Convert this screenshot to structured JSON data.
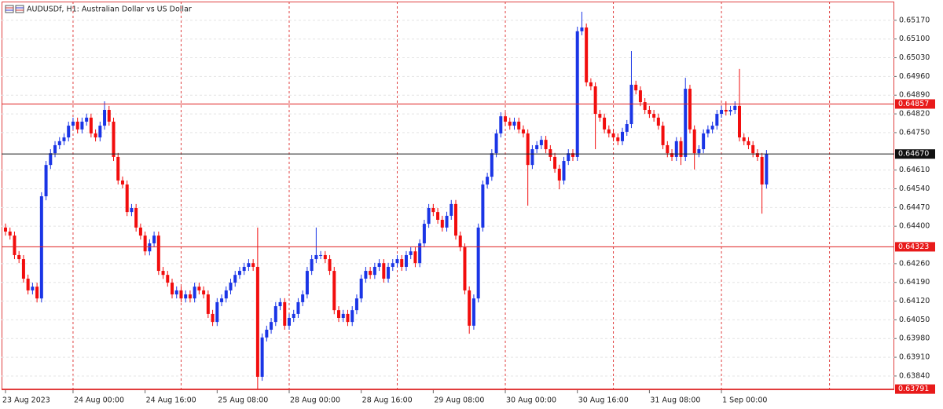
{
  "chart_data": {
    "type": "candlestick",
    "title": "AUDUSDf, H1:  Australian Dollar vs US Dollar",
    "up_color": "#1a35e6",
    "down_color": "#f20d0d",
    "ylim": [
      0.63787,
      0.6524
    ],
    "yticks": [
      {
        "value": 0.6517,
        "label": "0.65170"
      },
      {
        "value": 0.651,
        "label": "0.65100"
      },
      {
        "value": 0.6503,
        "label": "0.65030"
      },
      {
        "value": 0.6496,
        "label": "0.64960"
      },
      {
        "value": 0.6489,
        "label": "0.64890"
      },
      {
        "value": 0.6482,
        "label": "0.64820"
      },
      {
        "value": 0.6475,
        "label": "0.64750"
      },
      {
        "value": 0.6461,
        "label": "0.64610"
      },
      {
        "value": 0.6454,
        "label": "0.64540"
      },
      {
        "value": 0.6447,
        "label": "0.64470"
      },
      {
        "value": 0.644,
        "label": "0.64400"
      },
      {
        "value": 0.6426,
        "label": "0.64260"
      },
      {
        "value": 0.6419,
        "label": "0.64190"
      },
      {
        "value": 0.6412,
        "label": "0.64120"
      },
      {
        "value": 0.6405,
        "label": "0.64050"
      },
      {
        "value": 0.6398,
        "label": "0.63980"
      },
      {
        "value": 0.6391,
        "label": "0.63910"
      },
      {
        "value": 0.6384,
        "label": "0.63840"
      }
    ],
    "grid": true,
    "levels": [
      0.64857,
      0.64323,
      0.63791
    ],
    "current_price": {
      "value": 0.6467,
      "label": "0.64670"
    },
    "categories": [
      "23 Aug 2023",
      null,
      null,
      null,
      null,
      null,
      null,
      null,
      null,
      null,
      null,
      null,
      null,
      null,
      null,
      "24 Aug 00:00",
      null,
      null,
      null,
      null,
      null,
      null,
      null,
      null,
      null,
      null,
      null,
      null,
      null,
      null,
      null,
      "24 Aug 16:00",
      null,
      null,
      null,
      null,
      null,
      null,
      null,
      null,
      null,
      null,
      null,
      null,
      null,
      null,
      null,
      "25 Aug 08:00",
      null,
      null,
      null,
      null,
      null,
      null,
      null,
      null,
      null,
      null,
      null,
      null,
      null,
      null,
      null,
      "28 Aug 00:00",
      null,
      null,
      null,
      null,
      null,
      null,
      null,
      null,
      null,
      null,
      null,
      null,
      null,
      null,
      null,
      "28 Aug 16:00",
      null,
      null,
      null,
      null,
      null,
      null,
      null,
      null,
      null,
      null,
      null,
      null,
      null,
      null,
      null,
      "29 Aug 08:00",
      null,
      null,
      null,
      null,
      null,
      null,
      null,
      null,
      null,
      null,
      null,
      null,
      null,
      null,
      null,
      "30 Aug 00:00",
      null,
      null,
      null,
      null,
      null,
      null,
      null,
      null,
      null,
      null,
      null,
      null,
      null,
      null,
      null,
      "30 Aug 16:00",
      null,
      null,
      null,
      null,
      null,
      null,
      null,
      null,
      null,
      null,
      null,
      null,
      null,
      null,
      null,
      "31 Aug 08:00",
      null,
      null,
      null,
      null,
      null,
      null,
      null,
      null,
      null,
      null,
      null,
      null,
      null,
      null,
      null,
      "1 Sep 00:00",
      null,
      null,
      null,
      null,
      null,
      null,
      null,
      null,
      null,
      null
    ],
    "candles": [
      [
        0.64395,
        0.6441,
        0.64365,
        0.6438
      ],
      [
        0.6438,
        0.64395,
        0.6435,
        0.64365
      ],
      [
        0.64365,
        0.6438,
        0.64277,
        0.64292
      ],
      [
        0.64292,
        0.64307,
        0.64262,
        0.64277
      ],
      [
        0.64277,
        0.64292,
        0.64189,
        0.64204
      ],
      [
        0.64204,
        0.64219,
        0.64145,
        0.6416
      ],
      [
        0.6416,
        0.64189,
        0.64145,
        0.64174
      ],
      [
        0.64174,
        0.64189,
        0.64115,
        0.6413
      ],
      [
        0.6413,
        0.64527,
        0.64115,
        0.64512
      ],
      [
        0.64512,
        0.64644,
        0.64497,
        0.64629
      ],
      [
        0.64629,
        0.64688,
        0.64614,
        0.64673
      ],
      [
        0.64673,
        0.64718,
        0.64658,
        0.64703
      ],
      [
        0.64703,
        0.64733,
        0.64688,
        0.64718
      ],
      [
        0.64718,
        0.64747,
        0.64703,
        0.64732
      ],
      [
        0.64732,
        0.64791,
        0.64717,
        0.64776
      ],
      [
        0.64776,
        0.64806,
        0.64761,
        0.64791
      ],
      [
        0.64791,
        0.64806,
        0.64747,
        0.64762
      ],
      [
        0.64762,
        0.64806,
        0.64747,
        0.64791
      ],
      [
        0.64791,
        0.64821,
        0.64776,
        0.64806
      ],
      [
        0.64806,
        0.64821,
        0.64732,
        0.64747
      ],
      [
        0.64747,
        0.64762,
        0.64717,
        0.64732
      ],
      [
        0.64732,
        0.64791,
        0.64717,
        0.64776
      ],
      [
        0.64776,
        0.64867,
        0.64761,
        0.64835
      ],
      [
        0.64835,
        0.6485,
        0.64776,
        0.64791
      ],
      [
        0.64791,
        0.64806,
        0.64644,
        0.64659
      ],
      [
        0.64659,
        0.64674,
        0.64556,
        0.64571
      ],
      [
        0.64571,
        0.64586,
        0.64541,
        0.64556
      ],
      [
        0.64556,
        0.64571,
        0.64438,
        0.64453
      ],
      [
        0.64453,
        0.64483,
        0.64438,
        0.64468
      ],
      [
        0.64468,
        0.64483,
        0.6438,
        0.64395
      ],
      [
        0.64395,
        0.6441,
        0.6435,
        0.64365
      ],
      [
        0.64365,
        0.6438,
        0.64291,
        0.64306
      ],
      [
        0.64306,
        0.64351,
        0.64291,
        0.64336
      ],
      [
        0.64336,
        0.6438,
        0.64321,
        0.64365
      ],
      [
        0.64365,
        0.6438,
        0.64218,
        0.64233
      ],
      [
        0.64233,
        0.64248,
        0.64203,
        0.64218
      ],
      [
        0.64218,
        0.64233,
        0.64174,
        0.64189
      ],
      [
        0.64189,
        0.64204,
        0.6413,
        0.64145
      ],
      [
        0.64145,
        0.64175,
        0.6413,
        0.6416
      ],
      [
        0.6416,
        0.64175,
        0.64115,
        0.6413
      ],
      [
        0.6413,
        0.6416,
        0.64115,
        0.64145
      ],
      [
        0.64145,
        0.6416,
        0.64115,
        0.6413
      ],
      [
        0.6413,
        0.64189,
        0.64115,
        0.64174
      ],
      [
        0.64174,
        0.64189,
        0.64145,
        0.6416
      ],
      [
        0.6416,
        0.64175,
        0.6413,
        0.64145
      ],
      [
        0.64145,
        0.6416,
        0.64057,
        0.64072
      ],
      [
        0.64072,
        0.64087,
        0.64027,
        0.64042
      ],
      [
        0.64042,
        0.64131,
        0.64027,
        0.64116
      ],
      [
        0.64116,
        0.64145,
        0.64101,
        0.6413
      ],
      [
        0.6413,
        0.64175,
        0.64115,
        0.6416
      ],
      [
        0.6416,
        0.64204,
        0.64145,
        0.64189
      ],
      [
        0.64189,
        0.64233,
        0.64174,
        0.64218
      ],
      [
        0.64218,
        0.64248,
        0.64203,
        0.64233
      ],
      [
        0.64233,
        0.64263,
        0.64218,
        0.64248
      ],
      [
        0.64248,
        0.64277,
        0.64233,
        0.64262
      ],
      [
        0.64262,
        0.64277,
        0.64233,
        0.64248
      ],
      [
        0.64248,
        0.64395,
        0.63791,
        0.63837
      ],
      [
        0.63837,
        0.63999,
        0.63822,
        0.63984
      ],
      [
        0.63984,
        0.64028,
        0.63969,
        0.64013
      ],
      [
        0.64013,
        0.64057,
        0.63998,
        0.64042
      ],
      [
        0.64042,
        0.64116,
        0.64027,
        0.64101
      ],
      [
        0.64101,
        0.64131,
        0.64086,
        0.64116
      ],
      [
        0.64116,
        0.64131,
        0.64013,
        0.64028
      ],
      [
        0.64028,
        0.64072,
        0.64013,
        0.64057
      ],
      [
        0.64057,
        0.64087,
        0.64042,
        0.64072
      ],
      [
        0.64072,
        0.64131,
        0.64057,
        0.64116
      ],
      [
        0.64116,
        0.6416,
        0.64101,
        0.64145
      ],
      [
        0.64145,
        0.64248,
        0.6413,
        0.64233
      ],
      [
        0.64233,
        0.64292,
        0.64218,
        0.64277
      ],
      [
        0.64277,
        0.64395,
        0.64262,
        0.64292
      ],
      [
        0.64292,
        0.64307,
        0.64277,
        0.64292
      ],
      [
        0.64292,
        0.64307,
        0.64262,
        0.64277
      ],
      [
        0.64277,
        0.64292,
        0.64218,
        0.64233
      ],
      [
        0.64233,
        0.64248,
        0.64071,
        0.64086
      ],
      [
        0.64086,
        0.64101,
        0.64042,
        0.64057
      ],
      [
        0.64057,
        0.64087,
        0.64042,
        0.64072
      ],
      [
        0.64072,
        0.64087,
        0.64027,
        0.64042
      ],
      [
        0.64042,
        0.64101,
        0.64027,
        0.64086
      ],
      [
        0.64086,
        0.64145,
        0.64071,
        0.6413
      ],
      [
        0.6413,
        0.64219,
        0.64115,
        0.64204
      ],
      [
        0.64204,
        0.64248,
        0.64189,
        0.64233
      ],
      [
        0.64233,
        0.64248,
        0.64203,
        0.64218
      ],
      [
        0.64218,
        0.64263,
        0.64203,
        0.64248
      ],
      [
        0.64248,
        0.64277,
        0.64233,
        0.64262
      ],
      [
        0.64262,
        0.64277,
        0.64189,
        0.64204
      ],
      [
        0.64204,
        0.64263,
        0.64189,
        0.64248
      ],
      [
        0.64248,
        0.64277,
        0.64233,
        0.64262
      ],
      [
        0.64262,
        0.64292,
        0.64247,
        0.64277
      ],
      [
        0.64277,
        0.64292,
        0.64233,
        0.64248
      ],
      [
        0.64248,
        0.64307,
        0.64233,
        0.64292
      ],
      [
        0.64292,
        0.64321,
        0.64277,
        0.64306
      ],
      [
        0.64306,
        0.64321,
        0.64247,
        0.64262
      ],
      [
        0.64262,
        0.64351,
        0.64247,
        0.64336
      ],
      [
        0.64336,
        0.64424,
        0.64321,
        0.64409
      ],
      [
        0.64409,
        0.64483,
        0.64394,
        0.64468
      ],
      [
        0.64468,
        0.64483,
        0.64438,
        0.64453
      ],
      [
        0.64453,
        0.64468,
        0.64409,
        0.64424
      ],
      [
        0.64424,
        0.64439,
        0.6438,
        0.64395
      ],
      [
        0.64395,
        0.64454,
        0.6438,
        0.64439
      ],
      [
        0.64439,
        0.64498,
        0.64424,
        0.64483
      ],
      [
        0.64483,
        0.64498,
        0.6435,
        0.64365
      ],
      [
        0.64365,
        0.6438,
        0.64306,
        0.64321
      ],
      [
        0.64321,
        0.64336,
        0.64145,
        0.6416
      ],
      [
        0.6416,
        0.64175,
        0.63998,
        0.64028
      ],
      [
        0.64028,
        0.64145,
        0.64013,
        0.6413
      ],
      [
        0.6413,
        0.6441,
        0.64115,
        0.64395
      ],
      [
        0.64395,
        0.64571,
        0.6438,
        0.64556
      ],
      [
        0.64556,
        0.646,
        0.64541,
        0.64585
      ],
      [
        0.64585,
        0.64688,
        0.6457,
        0.64673
      ],
      [
        0.64673,
        0.64762,
        0.64658,
        0.64747
      ],
      [
        0.64747,
        0.64826,
        0.64732,
        0.64811
      ],
      [
        0.64811,
        0.64826,
        0.64776,
        0.64791
      ],
      [
        0.64791,
        0.64806,
        0.64761,
        0.64776
      ],
      [
        0.64776,
        0.64806,
        0.64761,
        0.64791
      ],
      [
        0.64791,
        0.64806,
        0.64747,
        0.64762
      ],
      [
        0.64762,
        0.64777,
        0.64732,
        0.64747
      ],
      [
        0.64747,
        0.64762,
        0.64477,
        0.64629
      ],
      [
        0.64629,
        0.64703,
        0.64614,
        0.64688
      ],
      [
        0.64688,
        0.64718,
        0.64673,
        0.64703
      ],
      [
        0.64703,
        0.64738,
        0.64688,
        0.64723
      ],
      [
        0.64723,
        0.64738,
        0.64673,
        0.64688
      ],
      [
        0.64688,
        0.64703,
        0.64644,
        0.64659
      ],
      [
        0.64659,
        0.64674,
        0.646,
        0.64615
      ],
      [
        0.64615,
        0.6463,
        0.64538,
        0.64571
      ],
      [
        0.64571,
        0.64659,
        0.64556,
        0.64644
      ],
      [
        0.64644,
        0.64688,
        0.64629,
        0.64673
      ],
      [
        0.64673,
        0.64688,
        0.64644,
        0.64659
      ],
      [
        0.64659,
        0.65146,
        0.64644,
        0.65129
      ],
      [
        0.65129,
        0.65202,
        0.65114,
        0.65143
      ],
      [
        0.65143,
        0.65158,
        0.64923,
        0.64938
      ],
      [
        0.64938,
        0.64953,
        0.64908,
        0.64923
      ],
      [
        0.64923,
        0.64938,
        0.64688,
        0.6482
      ],
      [
        0.6482,
        0.64835,
        0.64791,
        0.64806
      ],
      [
        0.64806,
        0.64821,
        0.64747,
        0.64762
      ],
      [
        0.64762,
        0.64777,
        0.64732,
        0.64747
      ],
      [
        0.64747,
        0.64762,
        0.64717,
        0.64732
      ],
      [
        0.64732,
        0.64747,
        0.64703,
        0.64718
      ],
      [
        0.64718,
        0.64768,
        0.64703,
        0.64753
      ],
      [
        0.64753,
        0.64797,
        0.64738,
        0.64782
      ],
      [
        0.64782,
        0.65055,
        0.64767,
        0.64929
      ],
      [
        0.64929,
        0.64944,
        0.64893,
        0.64908
      ],
      [
        0.64908,
        0.64923,
        0.64849,
        0.64864
      ],
      [
        0.64864,
        0.64879,
        0.6482,
        0.64835
      ],
      [
        0.64835,
        0.6485,
        0.64805,
        0.6482
      ],
      [
        0.6482,
        0.64835,
        0.64791,
        0.64806
      ],
      [
        0.64806,
        0.64821,
        0.64761,
        0.64776
      ],
      [
        0.64776,
        0.64791,
        0.64688,
        0.64703
      ],
      [
        0.64703,
        0.64718,
        0.64658,
        0.64673
      ],
      [
        0.64673,
        0.64688,
        0.64644,
        0.64659
      ],
      [
        0.64659,
        0.64733,
        0.64644,
        0.64718
      ],
      [
        0.64718,
        0.64733,
        0.64629,
        0.64659
      ],
      [
        0.64659,
        0.64955,
        0.64644,
        0.64914
      ],
      [
        0.64914,
        0.64929,
        0.64747,
        0.64762
      ],
      [
        0.64762,
        0.64777,
        0.64612,
        0.64673
      ],
      [
        0.64673,
        0.64703,
        0.64658,
        0.64688
      ],
      [
        0.64688,
        0.64762,
        0.64673,
        0.64747
      ],
      [
        0.64747,
        0.64777,
        0.64732,
        0.64762
      ],
      [
        0.64762,
        0.64791,
        0.64747,
        0.64776
      ],
      [
        0.64776,
        0.64835,
        0.64761,
        0.6482
      ],
      [
        0.6482,
        0.6485,
        0.64805,
        0.64835
      ],
      [
        0.64835,
        0.64867,
        0.64814,
        0.64829
      ],
      [
        0.64829,
        0.6485,
        0.64814,
        0.64835
      ],
      [
        0.64835,
        0.64867,
        0.6482,
        0.6485
      ],
      [
        0.6485,
        0.64988,
        0.64717,
        0.64732
      ],
      [
        0.64732,
        0.64747,
        0.64703,
        0.64718
      ],
      [
        0.64718,
        0.64733,
        0.64688,
        0.64703
      ],
      [
        0.64703,
        0.64718,
        0.64658,
        0.64673
      ],
      [
        0.64673,
        0.64688,
        0.64644,
        0.64659
      ],
      [
        0.64659,
        0.64674,
        0.64447,
        0.64556
      ],
      [
        0.64556,
        0.64685,
        0.64541,
        0.6467
      ]
    ]
  }
}
